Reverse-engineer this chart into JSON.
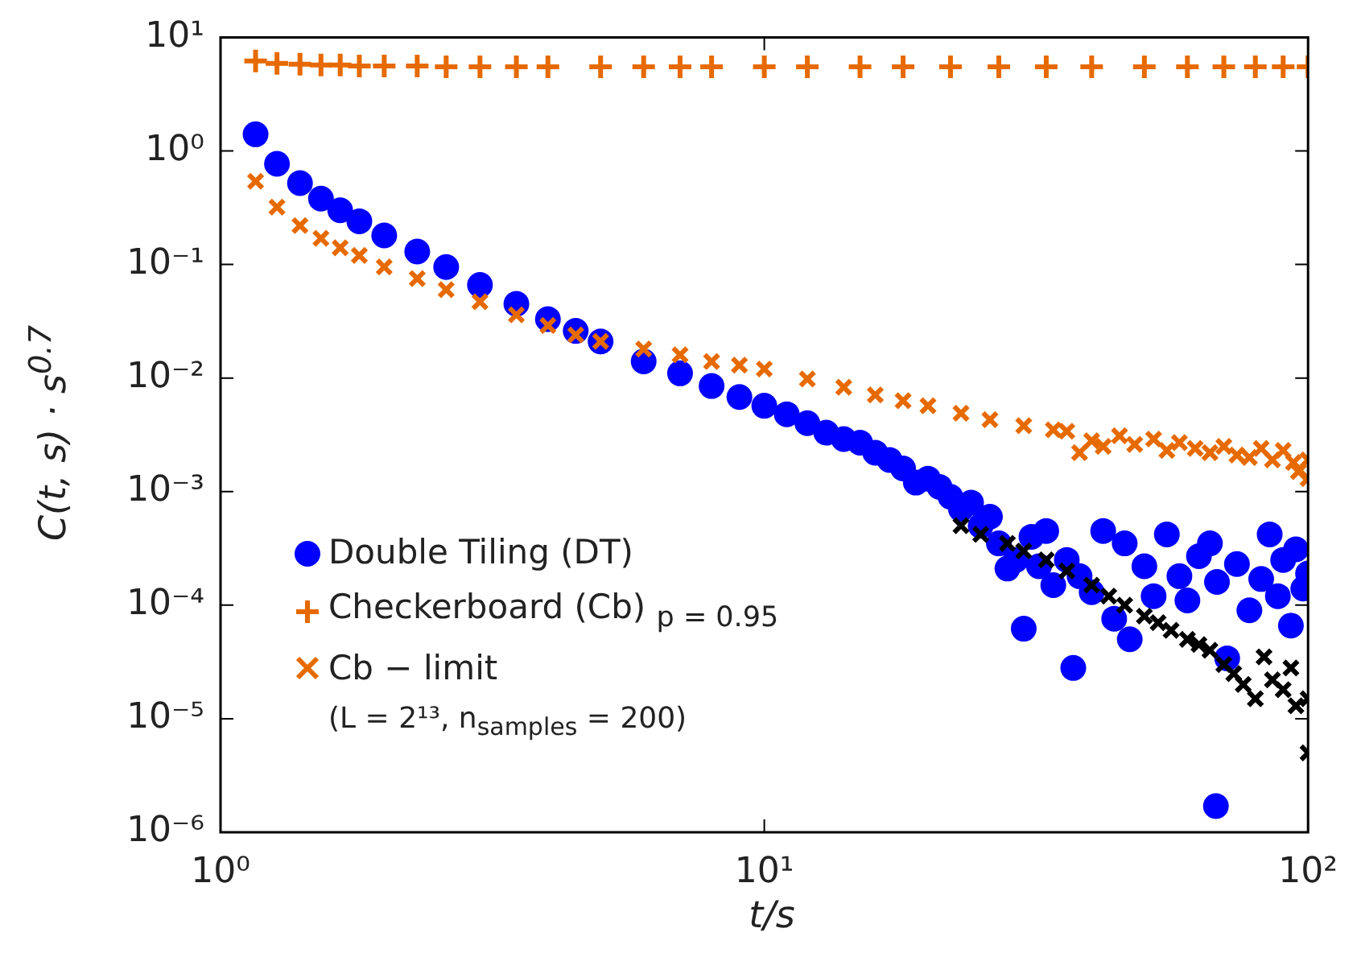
{
  "chart_data": {
    "type": "scatter",
    "xlabel": "t/s",
    "ylabel": "C(t, s) · s$^{0.7}$",
    "log": "xy",
    "grid": false,
    "legend": "bottom left",
    "xlim": [
      1,
      100
    ],
    "ylim": [
      1e-06,
      10
    ],
    "xticks": [
      {
        "value": 1,
        "label": "10⁰"
      },
      {
        "value": 10,
        "label": "10¹"
      },
      {
        "value": 100,
        "label": "10²"
      }
    ],
    "yticks": [
      {
        "value": 1e-06,
        "label": "10⁻⁶"
      },
      {
        "value": 1e-05,
        "label": "10⁻⁵"
      },
      {
        "value": 0.0001,
        "label": "10⁻⁴"
      },
      {
        "value": 0.001,
        "label": "10⁻³"
      },
      {
        "value": 0.01,
        "label": "10⁻²"
      },
      {
        "value": 0.1,
        "label": "10⁻¹"
      },
      {
        "value": 1,
        "label": "10⁰"
      },
      {
        "value": 10,
        "label": "10¹"
      }
    ],
    "annotations": [
      "(L = 2¹³, n$_{samples}$ = 200)"
    ],
    "series": [
      {
        "name": "Double Tiling (DT)",
        "color": "#0000ff",
        "marker": "circle",
        "x": [
          1.16,
          1.27,
          1.4,
          1.53,
          1.66,
          1.8,
          2,
          2.3,
          2.6,
          3,
          3.5,
          4,
          4.5,
          5,
          6,
          7,
          8,
          9,
          10,
          11,
          12,
          13,
          14,
          15,
          16,
          17,
          18,
          19,
          20,
          21,
          22,
          23,
          24,
          25,
          26,
          27,
          28,
          29,
          30,
          31,
          32,
          33,
          34,
          36,
          37,
          38,
          40,
          42,
          44,
          46,
          47,
          50,
          52,
          55,
          58,
          60,
          63,
          66,
          67.7,
          68,
          71,
          74,
          78,
          82,
          85,
          88,
          90,
          93,
          95,
          98,
          100
        ],
        "values": [
          1.4,
          0.77,
          0.52,
          0.38,
          0.3,
          0.24,
          0.18,
          0.13,
          0.095,
          0.066,
          0.045,
          0.033,
          0.026,
          0.021,
          0.014,
          0.011,
          0.0085,
          0.0068,
          0.0057,
          0.0048,
          0.004,
          0.0033,
          0.0029,
          0.0027,
          0.0022,
          0.0019,
          0.0016,
          0.0012,
          0.0013,
          0.0011,
          0.0009,
          0.0007,
          0.0008,
          0.0005,
          0.0006,
          0.00035,
          0.00021,
          0.00025,
          6.2e-05,
          0.0004,
          0.00022,
          0.00045,
          0.00015,
          0.00025,
          2.8e-05,
          0.00018,
          0.00013,
          0.00045,
          7.6e-05,
          0.00035,
          5e-05,
          0.00022,
          0.00012,
          0.00042,
          0.00018,
          0.00011,
          0.00027,
          0.00035,
          1.7e-06,
          0.00016,
          3.4e-05,
          0.00023,
          9e-05,
          0.00017,
          0.00042,
          0.00012,
          0.00025,
          6.6e-05,
          0.00031,
          0.00014,
          0.00019
        ]
      },
      {
        "name": "Checkerboard (Cb) $_{p = 0.95}$",
        "color": "#e66a00",
        "marker": "plus",
        "x": [
          1.16,
          1.27,
          1.4,
          1.53,
          1.66,
          1.8,
          2,
          2.3,
          2.6,
          3,
          3.5,
          4,
          5,
          6,
          7,
          8,
          10,
          12,
          15,
          18,
          22,
          27,
          33,
          40,
          50,
          60,
          70,
          80,
          90,
          100
        ],
        "values": [
          6.2,
          5.9,
          5.8,
          5.7,
          5.7,
          5.6,
          5.6,
          5.6,
          5.5,
          5.5,
          5.5,
          5.5,
          5.5,
          5.5,
          5.5,
          5.5,
          5.5,
          5.5,
          5.5,
          5.5,
          5.5,
          5.5,
          5.5,
          5.5,
          5.5,
          5.5,
          5.5,
          5.5,
          5.5,
          5.5
        ]
      },
      {
        "name": "Cb − limit",
        "color": "#e66a00",
        "marker": "cross",
        "x": [
          1.16,
          1.27,
          1.4,
          1.53,
          1.66,
          1.8,
          2,
          2.3,
          2.6,
          3,
          3.5,
          4,
          4.5,
          5,
          6,
          7,
          8,
          9,
          10,
          12,
          14,
          16,
          18,
          20,
          23,
          26,
          30,
          34,
          36,
          38,
          40,
          42,
          45,
          48,
          52,
          55,
          58,
          62,
          66,
          70,
          74,
          78,
          82,
          86,
          90,
          94,
          96,
          100,
          100
        ],
        "values": [
          0.54,
          0.32,
          0.22,
          0.17,
          0.14,
          0.12,
          0.095,
          0.075,
          0.06,
          0.047,
          0.036,
          0.029,
          0.024,
          0.021,
          0.018,
          0.016,
          0.014,
          0.013,
          0.012,
          0.0098,
          0.0083,
          0.0071,
          0.0063,
          0.0057,
          0.0049,
          0.0043,
          0.0038,
          0.0035,
          0.0034,
          0.0022,
          0.0028,
          0.0025,
          0.0031,
          0.0026,
          0.0029,
          0.0023,
          0.0027,
          0.0024,
          0.0022,
          0.0025,
          0.0021,
          0.002,
          0.0024,
          0.0019,
          0.0023,
          0.0018,
          0.0015,
          0.0019,
          0.0013
        ]
      },
      {
        "color": "#000000",
        "marker": "cross",
        "x": [
          23,
          25,
          28,
          30,
          33,
          36,
          40,
          43,
          46,
          50,
          53,
          56,
          60,
          63,
          66,
          70,
          73,
          76,
          80,
          83,
          86,
          90,
          93,
          95,
          100,
          100
        ],
        "values": [
          0.0005,
          0.00042,
          0.00035,
          0.0003,
          0.00025,
          0.0002,
          0.00015,
          0.00012,
          0.0001,
          8e-05,
          7e-05,
          6e-05,
          5e-05,
          4.5e-05,
          4e-05,
          3e-05,
          2.5e-05,
          2e-05,
          1.5e-05,
          3.5e-05,
          2.2e-05,
          1.8e-05,
          2.8e-05,
          1.3e-05,
          1.5e-05,
          5e-06
        ]
      }
    ]
  }
}
